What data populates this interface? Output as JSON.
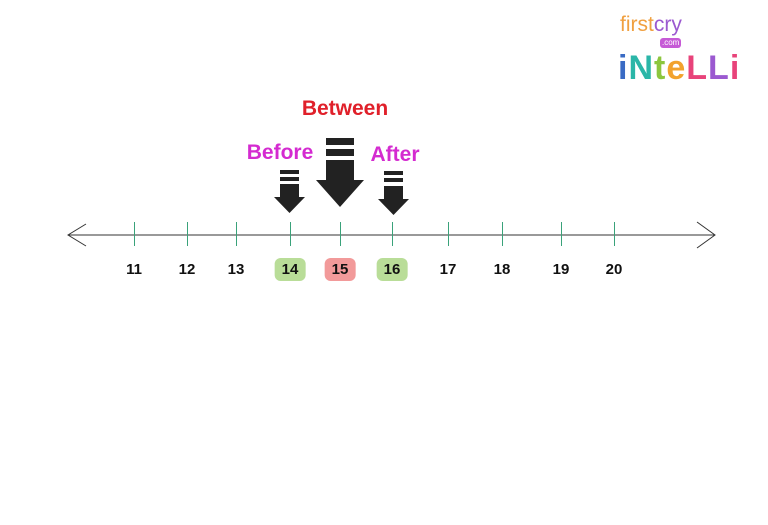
{
  "logo": {
    "line1": "firstcry",
    "sub": ".com",
    "line2": "intelli"
  },
  "labels": {
    "before": "Before",
    "between": "Between",
    "after": "After"
  },
  "colors": {
    "before": "#d42bd0",
    "between": "#e0202a",
    "after": "#d42bd0",
    "highlight_neighbors": "#b9dd98",
    "highlight_between": "#f29a9a",
    "ticks": "#3aa27a",
    "line": "#333333",
    "arrow": "#222222"
  },
  "number_line": {
    "numbers": [
      "11",
      "12",
      "13",
      "14",
      "15",
      "16",
      "17",
      "18",
      "19",
      "20"
    ],
    "highlighted": {
      "before": "14",
      "between": "15",
      "after": "16"
    }
  }
}
